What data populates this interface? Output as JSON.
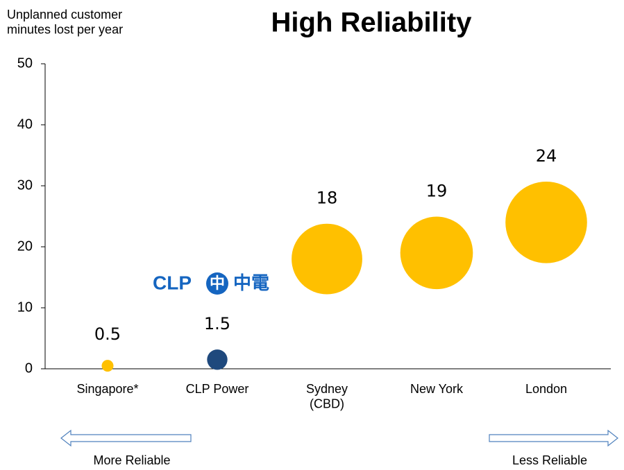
{
  "chart_data": {
    "type": "bubble",
    "title": "High Reliability",
    "ylabel": "Unplanned customer\nminutes lost per year",
    "categories": [
      "Singapore*",
      "CLP Power",
      "Sydney\n(CBD)",
      "New York",
      "London"
    ],
    "values": [
      0.5,
      1.5,
      18,
      19,
      24
    ],
    "colors": [
      "#ffc000",
      "#1f497d",
      "#ffc000",
      "#ffc000",
      "#ffc000"
    ],
    "ylim": [
      0,
      50
    ],
    "yticks": [
      0,
      10,
      20,
      30,
      40,
      50
    ],
    "logo": {
      "text": "CLP",
      "icon": "中",
      "chinese": "中電"
    },
    "arrows": {
      "left": "More Reliable",
      "right": "Less Reliable"
    }
  }
}
